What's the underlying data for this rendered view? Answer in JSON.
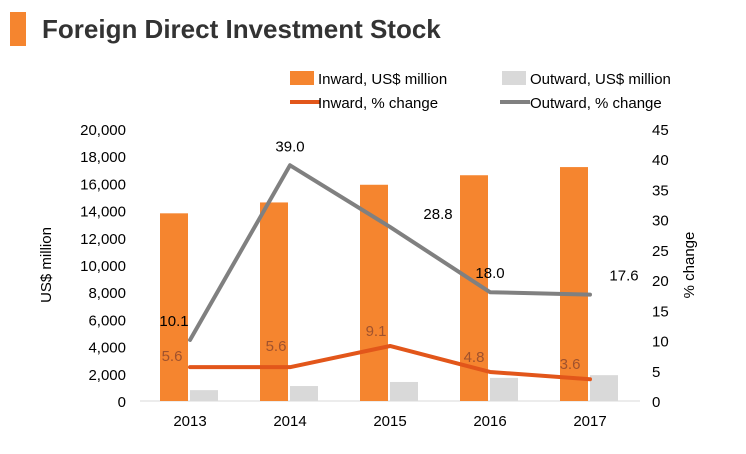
{
  "title": "Foreign Direct Investment Stock",
  "colors": {
    "accent": "#f5852f",
    "inward_bar": "#f5852f",
    "outward_bar": "#d9d9d9",
    "inward_line": "#e2561a",
    "outward_line": "#808080"
  },
  "chart_data": {
    "type": "bar",
    "categories": [
      "2013",
      "2014",
      "2015",
      "2016",
      "2017"
    ],
    "series": [
      {
        "name": "Inward, US$ million",
        "kind": "bar",
        "axis": "left",
        "values": [
          13800,
          14600,
          15900,
          16600,
          17200
        ]
      },
      {
        "name": "Outward, US$ million",
        "kind": "bar",
        "axis": "left",
        "values": [
          800,
          1100,
          1400,
          1700,
          1900
        ]
      },
      {
        "name": "Inward, % change",
        "kind": "line",
        "axis": "right",
        "values": [
          5.6,
          5.6,
          9.1,
          4.8,
          3.6
        ],
        "labels": [
          "5.6",
          "5.6",
          "9.1",
          "4.8",
          "3.6"
        ]
      },
      {
        "name": "Outward, % change",
        "kind": "line",
        "axis": "right",
        "values": [
          10.1,
          39.0,
          28.8,
          18.0,
          17.6
        ],
        "labels": [
          "10.1",
          "39.0",
          "28.8",
          "18.0",
          "17.6"
        ]
      }
    ],
    "ylabel": "US$ million",
    "y2label": "% change",
    "ylim": [
      0,
      20000
    ],
    "y2lim": [
      0,
      45
    ],
    "yticks": [
      "0",
      "2,000",
      "4,000",
      "6,000",
      "8,000",
      "10,000",
      "12,000",
      "14,000",
      "16,000",
      "18,000",
      "20,000"
    ],
    "y2ticks": [
      "0",
      "5",
      "10",
      "15",
      "20",
      "25",
      "30",
      "35",
      "40",
      "45"
    ],
    "legend_position": "top"
  }
}
